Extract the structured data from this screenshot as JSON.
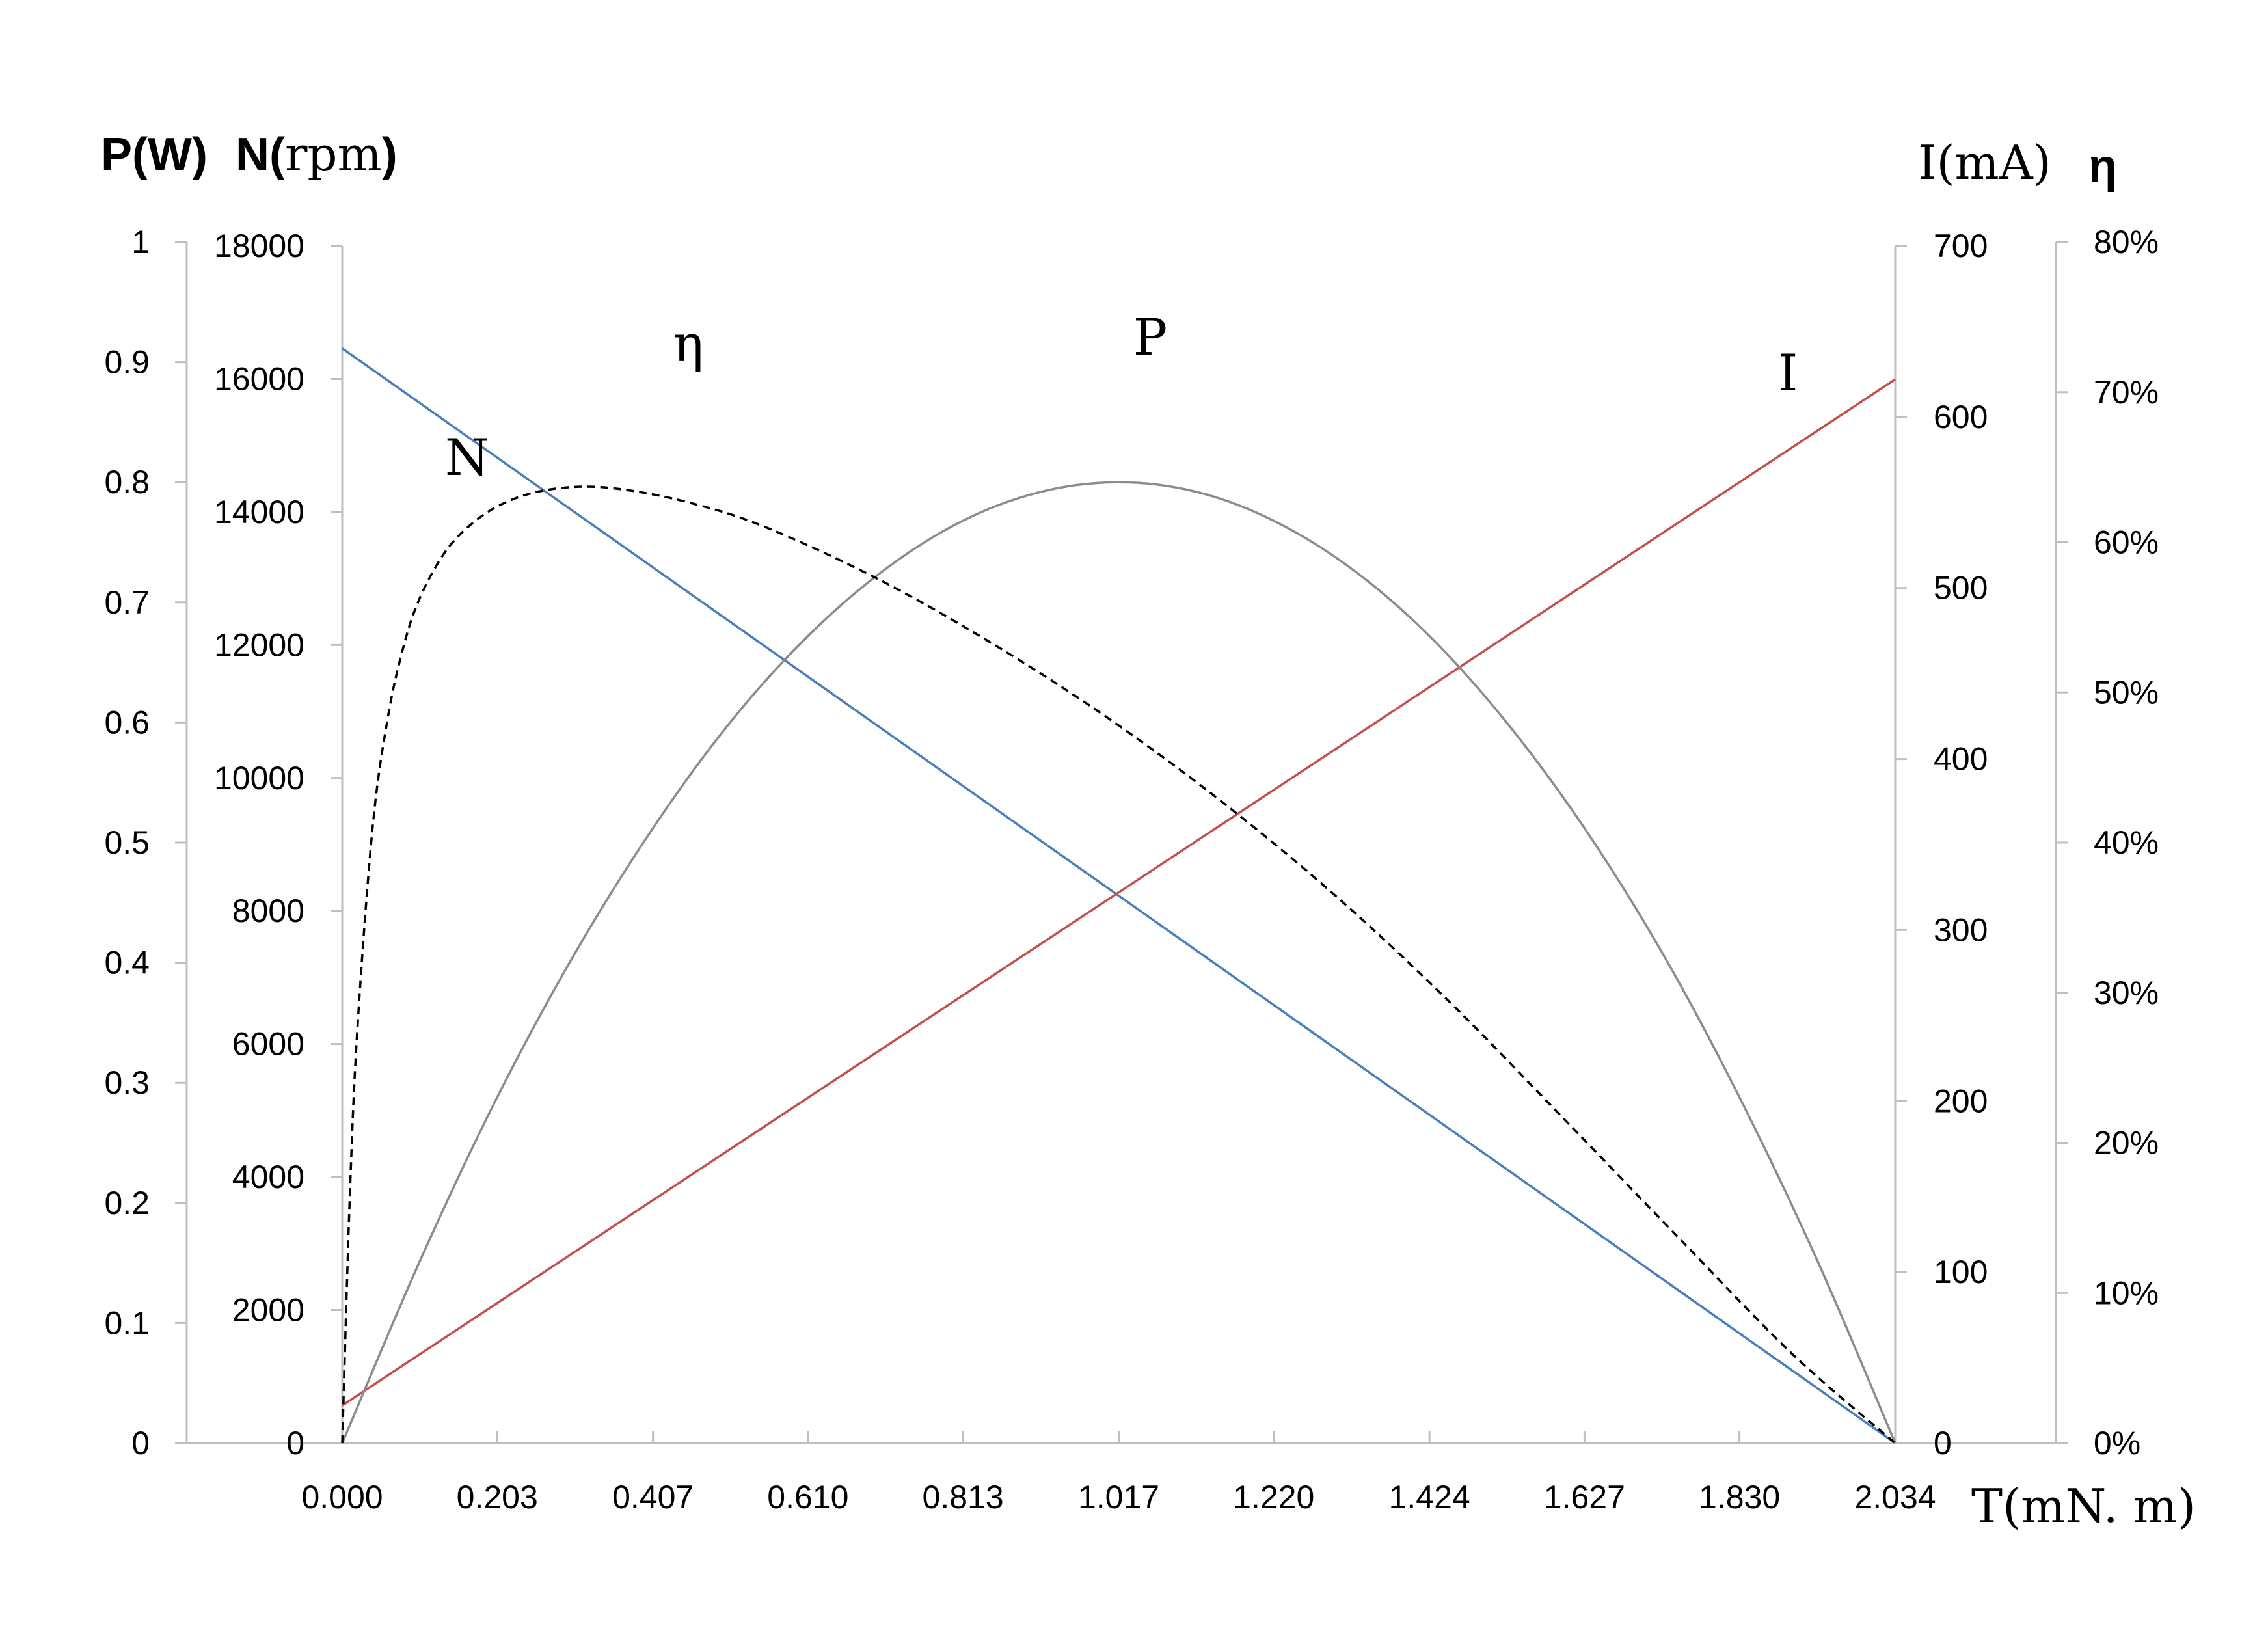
{
  "chart_data": {
    "type": "line",
    "x": [
      0.0,
      0.203,
      0.407,
      0.61,
      0.813,
      1.017,
      1.22,
      1.424,
      1.627,
      1.83,
      2.034
    ],
    "x_tick_labels": [
      "0.000",
      "0.203",
      "0.407",
      "0.610",
      "0.813",
      "1.017",
      "1.220",
      "1.424",
      "1.627",
      "1.830",
      "2.034"
    ],
    "xlabel": "T(mN. m)",
    "xlim": [
      0,
      2.034
    ],
    "axes": {
      "P": {
        "label_bold": "P(W)",
        "ticks": [
          "0",
          "0.1",
          "0.2",
          "0.3",
          "0.4",
          "0.5",
          "0.6",
          "0.7",
          "0.8",
          "0.9",
          "1"
        ],
        "ylim": [
          0,
          1
        ]
      },
      "N": {
        "label_bold": "N(",
        "label_serif": "rpm",
        "label_close": ")",
        "ticks": [
          "0",
          "2000",
          "4000",
          "6000",
          "8000",
          "10000",
          "12000",
          "14000",
          "16000",
          "18000"
        ],
        "ylim": [
          0,
          18000
        ]
      },
      "I": {
        "label": "I(mA)",
        "ticks": [
          "0",
          "100",
          "200",
          "300",
          "400",
          "500",
          "600",
          "700"
        ],
        "ylim": [
          0,
          700
        ]
      },
      "eta": {
        "label": "η",
        "ticks": [
          "0%",
          "10%",
          "20%",
          "30%",
          "40%",
          "50%",
          "60%",
          "70%",
          "80%"
        ],
        "ylim": [
          0,
          80
        ]
      }
    },
    "series": [
      {
        "name": "N",
        "axis": "N",
        "color": "#4a7ebb",
        "dash": "",
        "x": [
          0.0,
          2.034
        ],
        "values": [
          16460,
          0
        ]
      },
      {
        "name": "I",
        "axis": "I",
        "color": "#c0504d",
        "dash": "",
        "x": [
          0.0,
          2.034
        ],
        "values": [
          22,
          622
        ]
      },
      {
        "name": "P",
        "axis": "P",
        "color": "#8c8c8c",
        "dash": "",
        "x": [
          0.0,
          0.102,
          0.203,
          0.305,
          0.407,
          0.508,
          0.61,
          0.712,
          0.813,
          0.915,
          1.017,
          1.119,
          1.22,
          1.322,
          1.424,
          1.525,
          1.627,
          1.729,
          1.83,
          1.932,
          2.034
        ],
        "values": [
          0.0,
          0.152,
          0.288,
          0.408,
          0.512,
          0.6,
          0.672,
          0.728,
          0.768,
          0.792,
          0.8,
          0.792,
          0.768,
          0.728,
          0.672,
          0.6,
          0.512,
          0.408,
          0.288,
          0.152,
          0.0
        ]
      },
      {
        "name": "η",
        "axis": "eta",
        "color": "#000000",
        "dash": "12,8",
        "x": [
          0.0,
          0.01,
          0.02,
          0.04,
          0.06,
          0.08,
          0.1,
          0.13,
          0.16,
          0.2,
          0.25,
          0.31,
          0.37,
          0.45,
          0.55,
          0.7,
          0.85,
          1.0,
          1.15,
          1.3,
          1.45,
          1.6,
          1.75,
          1.9,
          2.034
        ],
        "values": [
          0.0,
          16.5,
          27.7,
          41.1,
          48.4,
          53.0,
          56.1,
          59.0,
          60.8,
          62.3,
          63.3,
          63.7,
          63.5,
          62.7,
          61.1,
          57.6,
          53.3,
          48.4,
          42.8,
          36.5,
          29.4,
          21.6,
          13.7,
          5.9,
          0.0
        ]
      }
    ],
    "curve_labels": [
      {
        "text": "N",
        "series": "N"
      },
      {
        "text": "η",
        "series": "η"
      },
      {
        "text": "P",
        "series": "P"
      },
      {
        "text": "I",
        "series": "I"
      }
    ],
    "grid": false,
    "legend": "none"
  }
}
